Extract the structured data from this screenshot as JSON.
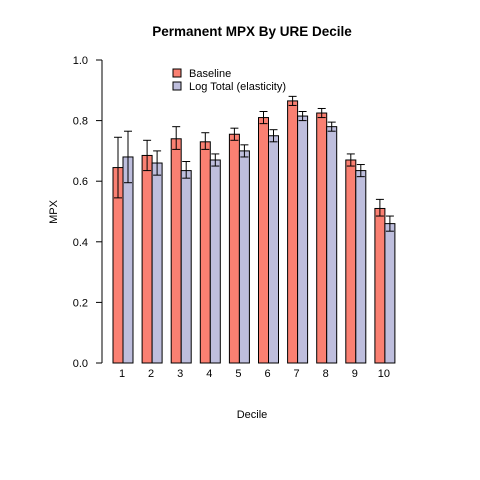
{
  "chart_data": {
    "type": "bar",
    "title": "Permanent MPX By URE Decile",
    "xlabel": "Decile",
    "ylabel": "MPX",
    "ylim": [
      0,
      1
    ],
    "yticks": [
      "0.0",
      "0.2",
      "0.4",
      "0.6",
      "0.8",
      "1.0"
    ],
    "categories": [
      "1",
      "2",
      "3",
      "4",
      "5",
      "6",
      "7",
      "8",
      "9",
      "10"
    ],
    "legend_position": "top-left",
    "grid": false,
    "series": [
      {
        "name": "Baseline",
        "color": "#fa8072",
        "values": [
          0.645,
          0.685,
          0.74,
          0.73,
          0.755,
          0.81,
          0.865,
          0.825,
          0.67,
          0.51
        ],
        "err_low": [
          0.545,
          0.635,
          0.705,
          0.705,
          0.735,
          0.79,
          0.85,
          0.81,
          0.65,
          0.485
        ],
        "err_high": [
          0.745,
          0.735,
          0.78,
          0.76,
          0.775,
          0.83,
          0.88,
          0.84,
          0.69,
          0.54
        ]
      },
      {
        "name": "Log Total (elasticity)",
        "color": "#bebedd",
        "values": [
          0.68,
          0.66,
          0.635,
          0.67,
          0.7,
          0.75,
          0.815,
          0.78,
          0.635,
          0.46
        ],
        "err_low": [
          0.595,
          0.62,
          0.61,
          0.65,
          0.68,
          0.73,
          0.8,
          0.765,
          0.615,
          0.435
        ],
        "err_high": [
          0.765,
          0.7,
          0.665,
          0.69,
          0.72,
          0.77,
          0.83,
          0.795,
          0.655,
          0.485
        ]
      }
    ]
  }
}
